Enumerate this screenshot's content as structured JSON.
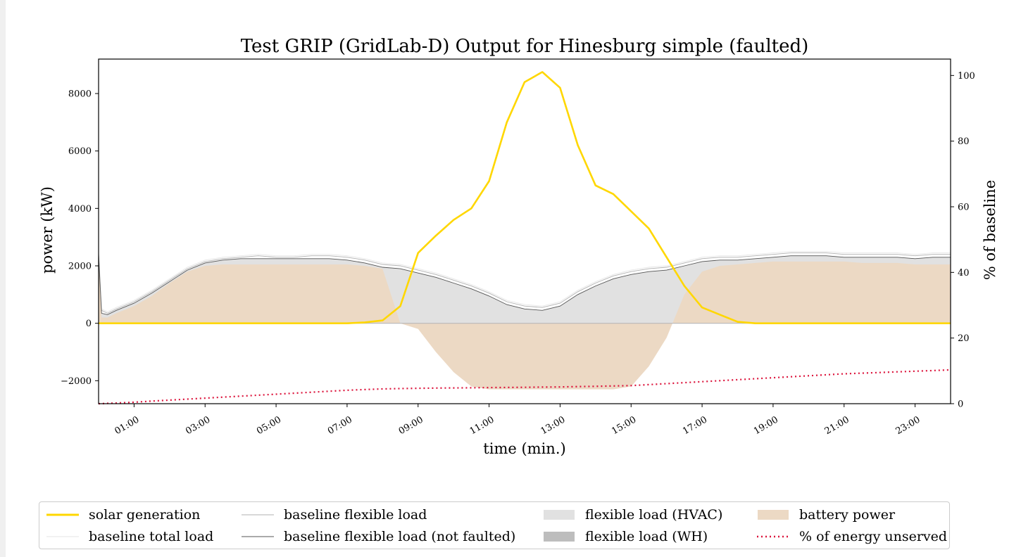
{
  "chart_data": {
    "type": "area",
    "title": "Test GRIP (GridLab-D) Output for Hinesburg simple (faulted)",
    "xlabel": "time (min.)",
    "ylabel": "power (kW)",
    "y2label": "% of baseline",
    "xlim": [
      0,
      1440
    ],
    "ylim": [
      -2800,
      9200
    ],
    "y2lim": [
      0,
      105
    ],
    "x_ticks": [
      60,
      180,
      300,
      420,
      540,
      660,
      780,
      900,
      1020,
      1140,
      1260,
      1380
    ],
    "x_tick_labels": [
      "01:00",
      "03:00",
      "05:00",
      "07:00",
      "09:00",
      "11:00",
      "13:00",
      "15:00",
      "17:00",
      "19:00",
      "21:00",
      "23:00"
    ],
    "y_ticks": [
      -2000,
      0,
      2000,
      4000,
      6000,
      8000
    ],
    "y_tick_labels": [
      "−2000",
      "0",
      "2000",
      "4000",
      "6000",
      "8000"
    ],
    "y2_ticks": [
      0,
      20,
      40,
      60,
      80,
      100
    ],
    "y2_tick_labels": [
      "0",
      "20",
      "40",
      "60",
      "80",
      "100"
    ],
    "grid": false,
    "legend_position": "bottom",
    "x": [
      0,
      5,
      15,
      30,
      60,
      90,
      120,
      150,
      180,
      210,
      240,
      270,
      300,
      330,
      360,
      390,
      420,
      450,
      480,
      510,
      540,
      570,
      600,
      630,
      660,
      690,
      720,
      750,
      780,
      810,
      840,
      870,
      900,
      930,
      960,
      990,
      1020,
      1050,
      1080,
      1110,
      1140,
      1170,
      1200,
      1230,
      1260,
      1290,
      1320,
      1350,
      1380,
      1410,
      1440
    ],
    "series": [
      {
        "name": "solar generation",
        "color": "#ffd700",
        "axis": "left",
        "values": [
          0,
          0,
          0,
          0,
          0,
          0,
          0,
          0,
          0,
          0,
          0,
          0,
          0,
          0,
          0,
          0,
          0,
          30,
          100,
          600,
          2450,
          3050,
          3600,
          4000,
          4950,
          7000,
          8400,
          8750,
          8200,
          6200,
          4800,
          4500,
          3900,
          3300,
          2300,
          1300,
          550,
          300,
          50,
          0,
          0,
          0,
          0,
          0,
          0,
          0,
          0,
          0,
          0,
          0,
          0
        ]
      },
      {
        "name": "baseline total load",
        "color": "#e6e6e6",
        "axis": "left",
        "values": [
          2500,
          500,
          400,
          550,
          800,
          1150,
          1550,
          1950,
          2200,
          2300,
          2350,
          2400,
          2350,
          2350,
          2400,
          2400,
          2350,
          2250,
          2100,
          2050,
          1900,
          1750,
          1550,
          1350,
          1100,
          800,
          650,
          600,
          750,
          1150,
          1450,
          1700,
          1850,
          1950,
          2000,
          2150,
          2300,
          2350,
          2350,
          2400,
          2450,
          2500,
          2500,
          2500,
          2450,
          2450,
          2450,
          2450,
          2400,
          2450,
          2450
        ]
      },
      {
        "name": "baseline flexible load",
        "color": "#b0b0b0",
        "axis": "left",
        "values": [
          2450,
          450,
          350,
          500,
          750,
          1100,
          1500,
          1900,
          2150,
          2250,
          2300,
          2350,
          2300,
          2300,
          2350,
          2350,
          2300,
          2200,
          2050,
          2000,
          1850,
          1700,
          1500,
          1300,
          1050,
          750,
          600,
          550,
          700,
          1100,
          1400,
          1650,
          1800,
          1900,
          1950,
          2100,
          2250,
          2300,
          2300,
          2350,
          2400,
          2450,
          2450,
          2450,
          2400,
          2400,
          2400,
          2400,
          2350,
          2400,
          2400
        ]
      },
      {
        "name": "baseline flexible load (not faulted)",
        "color": "#555555",
        "axis": "left",
        "values": [
          2400,
          350,
          300,
          450,
          700,
          1050,
          1450,
          1850,
          2100,
          2200,
          2250,
          2250,
          2250,
          2250,
          2250,
          2250,
          2200,
          2100,
          1950,
          1900,
          1750,
          1600,
          1400,
          1200,
          950,
          650,
          500,
          450,
          600,
          1000,
          1300,
          1550,
          1700,
          1800,
          1850,
          2000,
          2150,
          2200,
          2200,
          2250,
          2300,
          2350,
          2350,
          2350,
          2300,
          2300,
          2300,
          2300,
          2250,
          2300,
          2300
        ]
      },
      {
        "name": "flexible load (HVAC)",
        "color": "#e1e1e1",
        "axis": "left",
        "values": [
          2400,
          350,
          300,
          450,
          700,
          1050,
          1450,
          1850,
          2100,
          2200,
          2250,
          2250,
          2250,
          2250,
          2250,
          2250,
          2200,
          2100,
          1950,
          1900,
          1750,
          1600,
          1400,
          1200,
          950,
          650,
          500,
          450,
          600,
          1000,
          1300,
          1550,
          1700,
          1800,
          1850,
          2000,
          2150,
          2200,
          2200,
          2250,
          2300,
          2350,
          2350,
          2350,
          2300,
          2300,
          2300,
          2300,
          2250,
          2300,
          2300
        ]
      },
      {
        "name": "flexible load (WH)",
        "color": "#bdbdbd",
        "axis": "left",
        "values": [
          0,
          0,
          0,
          0,
          0,
          0,
          0,
          0,
          0,
          0,
          0,
          0,
          0,
          0,
          0,
          0,
          0,
          0,
          0,
          0,
          0,
          0,
          0,
          0,
          0,
          0,
          0,
          0,
          0,
          0,
          0,
          0,
          0,
          0,
          0,
          0,
          0,
          0,
          0,
          0,
          0,
          0,
          0,
          0,
          0,
          0,
          0,
          0,
          0,
          0,
          0
        ]
      },
      {
        "name": "battery power",
        "color": "#ecd9c4",
        "axis": "left",
        "values": [
          2300,
          200,
          200,
          350,
          600,
          950,
          1400,
          1800,
          2000,
          2050,
          2050,
          2050,
          2050,
          2050,
          2050,
          2050,
          2050,
          2000,
          1900,
          0,
          -200,
          -1000,
          -1700,
          -2200,
          -2300,
          -2300,
          -2300,
          -2300,
          -2300,
          -2300,
          -2300,
          -2300,
          -2200,
          -1500,
          -500,
          1000,
          1800,
          2000,
          2050,
          2100,
          2150,
          2150,
          2150,
          2150,
          2150,
          2100,
          2100,
          2100,
          2050,
          2050,
          2050
        ]
      },
      {
        "name": "% of energy unserved",
        "color": "#dc143c",
        "axis": "right",
        "values": [
          0,
          0,
          0.1,
          0.2,
          0.45,
          0.8,
          1.1,
          1.4,
          1.7,
          2.0,
          2.3,
          2.6,
          2.9,
          3.2,
          3.5,
          3.8,
          4.1,
          4.3,
          4.5,
          4.6,
          4.7,
          4.75,
          4.8,
          4.85,
          4.9,
          4.95,
          5.0,
          5.05,
          5.1,
          5.2,
          5.3,
          5.4,
          5.5,
          5.8,
          6.1,
          6.4,
          6.7,
          7.0,
          7.3,
          7.6,
          7.9,
          8.2,
          8.5,
          8.8,
          9.1,
          9.3,
          9.5,
          9.7,
          9.9,
          10.1,
          10.3
        ]
      }
    ]
  },
  "legend": {
    "items": [
      {
        "label": "solar generation"
      },
      {
        "label": "baseline total load"
      },
      {
        "label": "baseline flexible load"
      },
      {
        "label": "baseline flexible load (not faulted)"
      },
      {
        "label": "flexible load (HVAC)"
      },
      {
        "label": "flexible load (WH)"
      },
      {
        "label": "battery power"
      },
      {
        "label": "% of energy unserved"
      }
    ]
  }
}
